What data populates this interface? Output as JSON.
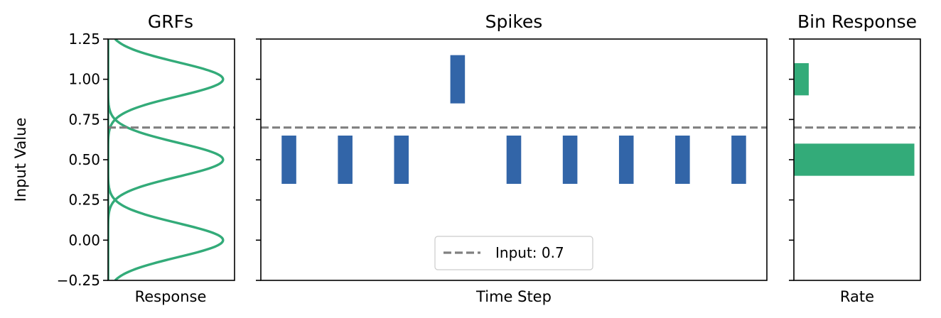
{
  "chart_data": [
    {
      "type": "line",
      "title": "GRFs",
      "xlabel": "Response",
      "ylabel": "Input Value",
      "ylim": [
        -0.25,
        1.25
      ],
      "xlim": [
        0,
        1.1
      ],
      "yticks": [
        "−0.25",
        "0.00",
        "0.25",
        "0.50",
        "0.75",
        "1.00",
        "1.25"
      ],
      "series": [
        {
          "center": 0.0,
          "sigma": 0.106,
          "peak": 1.0
        },
        {
          "center": 0.5,
          "sigma": 0.106,
          "peak": 1.0
        },
        {
          "center": 1.0,
          "sigma": 0.106,
          "peak": 1.0
        }
      ],
      "reference_line": 0.7,
      "colors": {
        "curve": "#33ab79",
        "reference": "#808080"
      }
    },
    {
      "type": "scatter",
      "title": "Spikes",
      "xlabel": "Time Step",
      "ylim": [
        -0.25,
        1.25
      ],
      "xlim": [
        -0.5,
        8.5
      ],
      "spikes": [
        {
          "t": 0,
          "level": 0.5
        },
        {
          "t": 1,
          "level": 0.5
        },
        {
          "t": 2,
          "level": 0.5
        },
        {
          "t": 3,
          "level": 1.0
        },
        {
          "t": 4,
          "level": 0.5
        },
        {
          "t": 5,
          "level": 0.5
        },
        {
          "t": 6,
          "level": 0.5
        },
        {
          "t": 7,
          "level": 0.5
        },
        {
          "t": 8,
          "level": 0.5
        }
      ],
      "legend": {
        "label": "Input: 0.7",
        "placement": "lower-center"
      },
      "reference_line": 0.7,
      "colors": {
        "spike": "#3265a8",
        "reference": "#808080"
      }
    },
    {
      "type": "bar",
      "title": "Bin Response",
      "xlabel": "Rate",
      "orientation": "horizontal",
      "ylim": [
        -0.25,
        1.25
      ],
      "xlim": [
        0,
        0.945
      ],
      "bars": [
        {
          "level": 0.5,
          "value": 0.9
        },
        {
          "level": 1.0,
          "value": 0.111
        }
      ],
      "reference_line": 0.7,
      "colors": {
        "bar": "#33ab79",
        "reference": "#808080"
      }
    }
  ]
}
